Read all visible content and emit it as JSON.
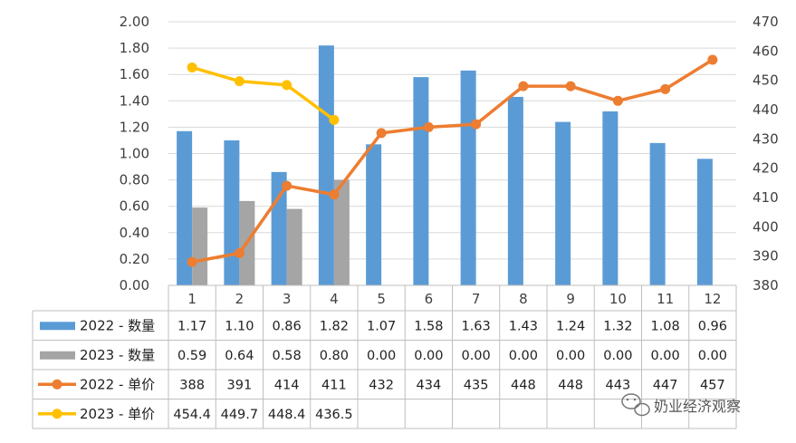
{
  "chart_data": {
    "type": "bar+line",
    "categories": [
      "1",
      "2",
      "3",
      "4",
      "5",
      "6",
      "7",
      "8",
      "9",
      "10",
      "11",
      "12"
    ],
    "left_axis": {
      "min": 0,
      "max": 2.0,
      "step": 0.2,
      "ticks": [
        "0.00",
        "0.20",
        "0.40",
        "0.60",
        "0.80",
        "1.00",
        "1.20",
        "1.40",
        "1.60",
        "1.80",
        "2.00"
      ]
    },
    "right_axis": {
      "min": 380,
      "max": 470,
      "step": 10,
      "ticks": [
        "380",
        "390",
        "400",
        "410",
        "420",
        "430",
        "440",
        "450",
        "460",
        "470"
      ]
    },
    "grid": true,
    "legend_placement": "data-table-left",
    "series": [
      {
        "name": "2022 - 数量",
        "kind": "bar",
        "axis": "left",
        "color": "#5B9BD5",
        "values": [
          1.17,
          1.1,
          0.86,
          1.82,
          1.07,
          1.58,
          1.63,
          1.43,
          1.24,
          1.32,
          1.08,
          0.96
        ],
        "labels": [
          "1.17",
          "1.10",
          "0.86",
          "1.82",
          "1.07",
          "1.58",
          "1.63",
          "1.43",
          "1.24",
          "1.32",
          "1.08",
          "0.96"
        ]
      },
      {
        "name": "2023 - 数量",
        "kind": "bar",
        "axis": "left",
        "color": "#A5A5A5",
        "values": [
          0.59,
          0.64,
          0.58,
          0.8,
          0,
          0,
          0,
          0,
          0,
          0,
          0,
          0
        ],
        "labels": [
          "0.59",
          "0.64",
          "0.58",
          "0.80",
          "0.00",
          "0.00",
          "0.00",
          "0.00",
          "0.00",
          "0.00",
          "0.00",
          "0.00"
        ]
      },
      {
        "name": "2022 - 单价",
        "kind": "line",
        "axis": "right",
        "color": "#ED7D31",
        "values": [
          388,
          391,
          414,
          411,
          432,
          434,
          435,
          448,
          448,
          443,
          447,
          457
        ],
        "labels": [
          "388",
          "391",
          "414",
          "411",
          "432",
          "434",
          "435",
          "448",
          "448",
          "443",
          "447",
          "457"
        ]
      },
      {
        "name": "2023 - 单价",
        "kind": "line",
        "axis": "right",
        "color": "#FFC000",
        "values": [
          454.4,
          449.7,
          448.4,
          436.5,
          null,
          null,
          null,
          null,
          null,
          null,
          null,
          null
        ],
        "labels": [
          "454.4",
          "449.7",
          "448.4",
          "436.5",
          "",
          "",
          "",
          "",
          "",
          "",
          "",
          ""
        ]
      }
    ]
  },
  "watermark": {
    "text": "奶业经济观察",
    "icon": "wechat-icon"
  }
}
